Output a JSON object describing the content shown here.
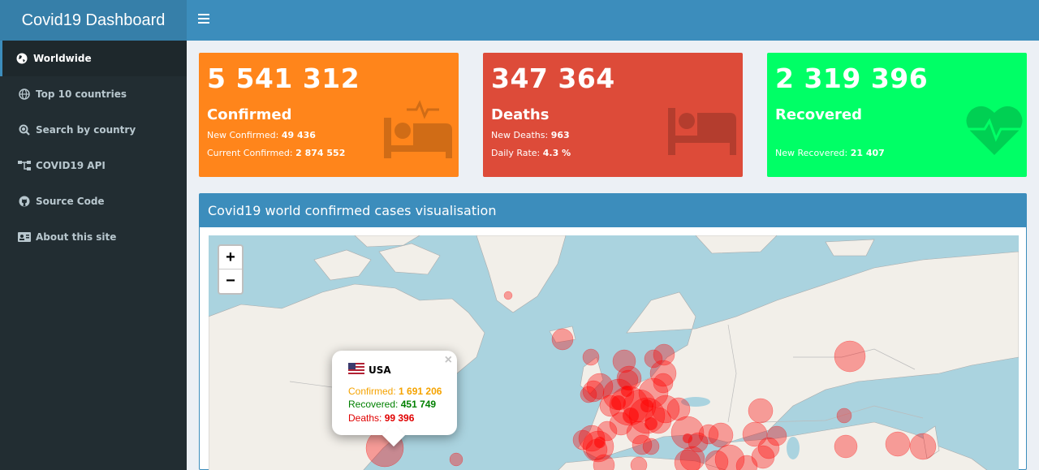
{
  "header": {
    "title": "Covid19 Dashboard"
  },
  "sidebar": {
    "items": [
      {
        "label": "Worldwide",
        "icon": "globe-icon"
      },
      {
        "label": "Top 10 countries",
        "icon": "globe-grid-icon"
      },
      {
        "label": "Search by country",
        "icon": "search-globe-icon"
      },
      {
        "label": "COVID19 API",
        "icon": "sitemap-icon"
      },
      {
        "label": "Source Code",
        "icon": "github-icon"
      },
      {
        "label": "About this site",
        "icon": "id-card-icon"
      }
    ]
  },
  "confirmed": {
    "value": "5 541 312",
    "label": "Confirmed",
    "line1_label": "New Confirmed:",
    "line1_value": "49 436",
    "line2_label": "Current Confirmed:",
    "line2_value": "2 874 552",
    "color": "#ff851b"
  },
  "deaths": {
    "value": "347 364",
    "label": "Deaths",
    "line1_label": "New Deaths:",
    "line1_value": "963",
    "line2_label": "Daily Rate:",
    "line2_value": "4.3 %",
    "color": "#dd4b39"
  },
  "recovered": {
    "value": "2 319 396",
    "label": "Recovered",
    "line1_label": "New Recovered:",
    "line1_value": "21 407",
    "color": "#00ff66"
  },
  "map": {
    "title": "Covid19 world confirmed cases visualisation",
    "zoom_in": "+",
    "zoom_out": "−",
    "popup": {
      "country": "USA",
      "confirmed_label": "Confirmed:",
      "confirmed_value": "1 691 206",
      "recovered_label": "Recovered:",
      "recovered_value": "451 749",
      "deaths_label": "Deaths:",
      "deaths_value": "99 396",
      "close": "×"
    }
  }
}
